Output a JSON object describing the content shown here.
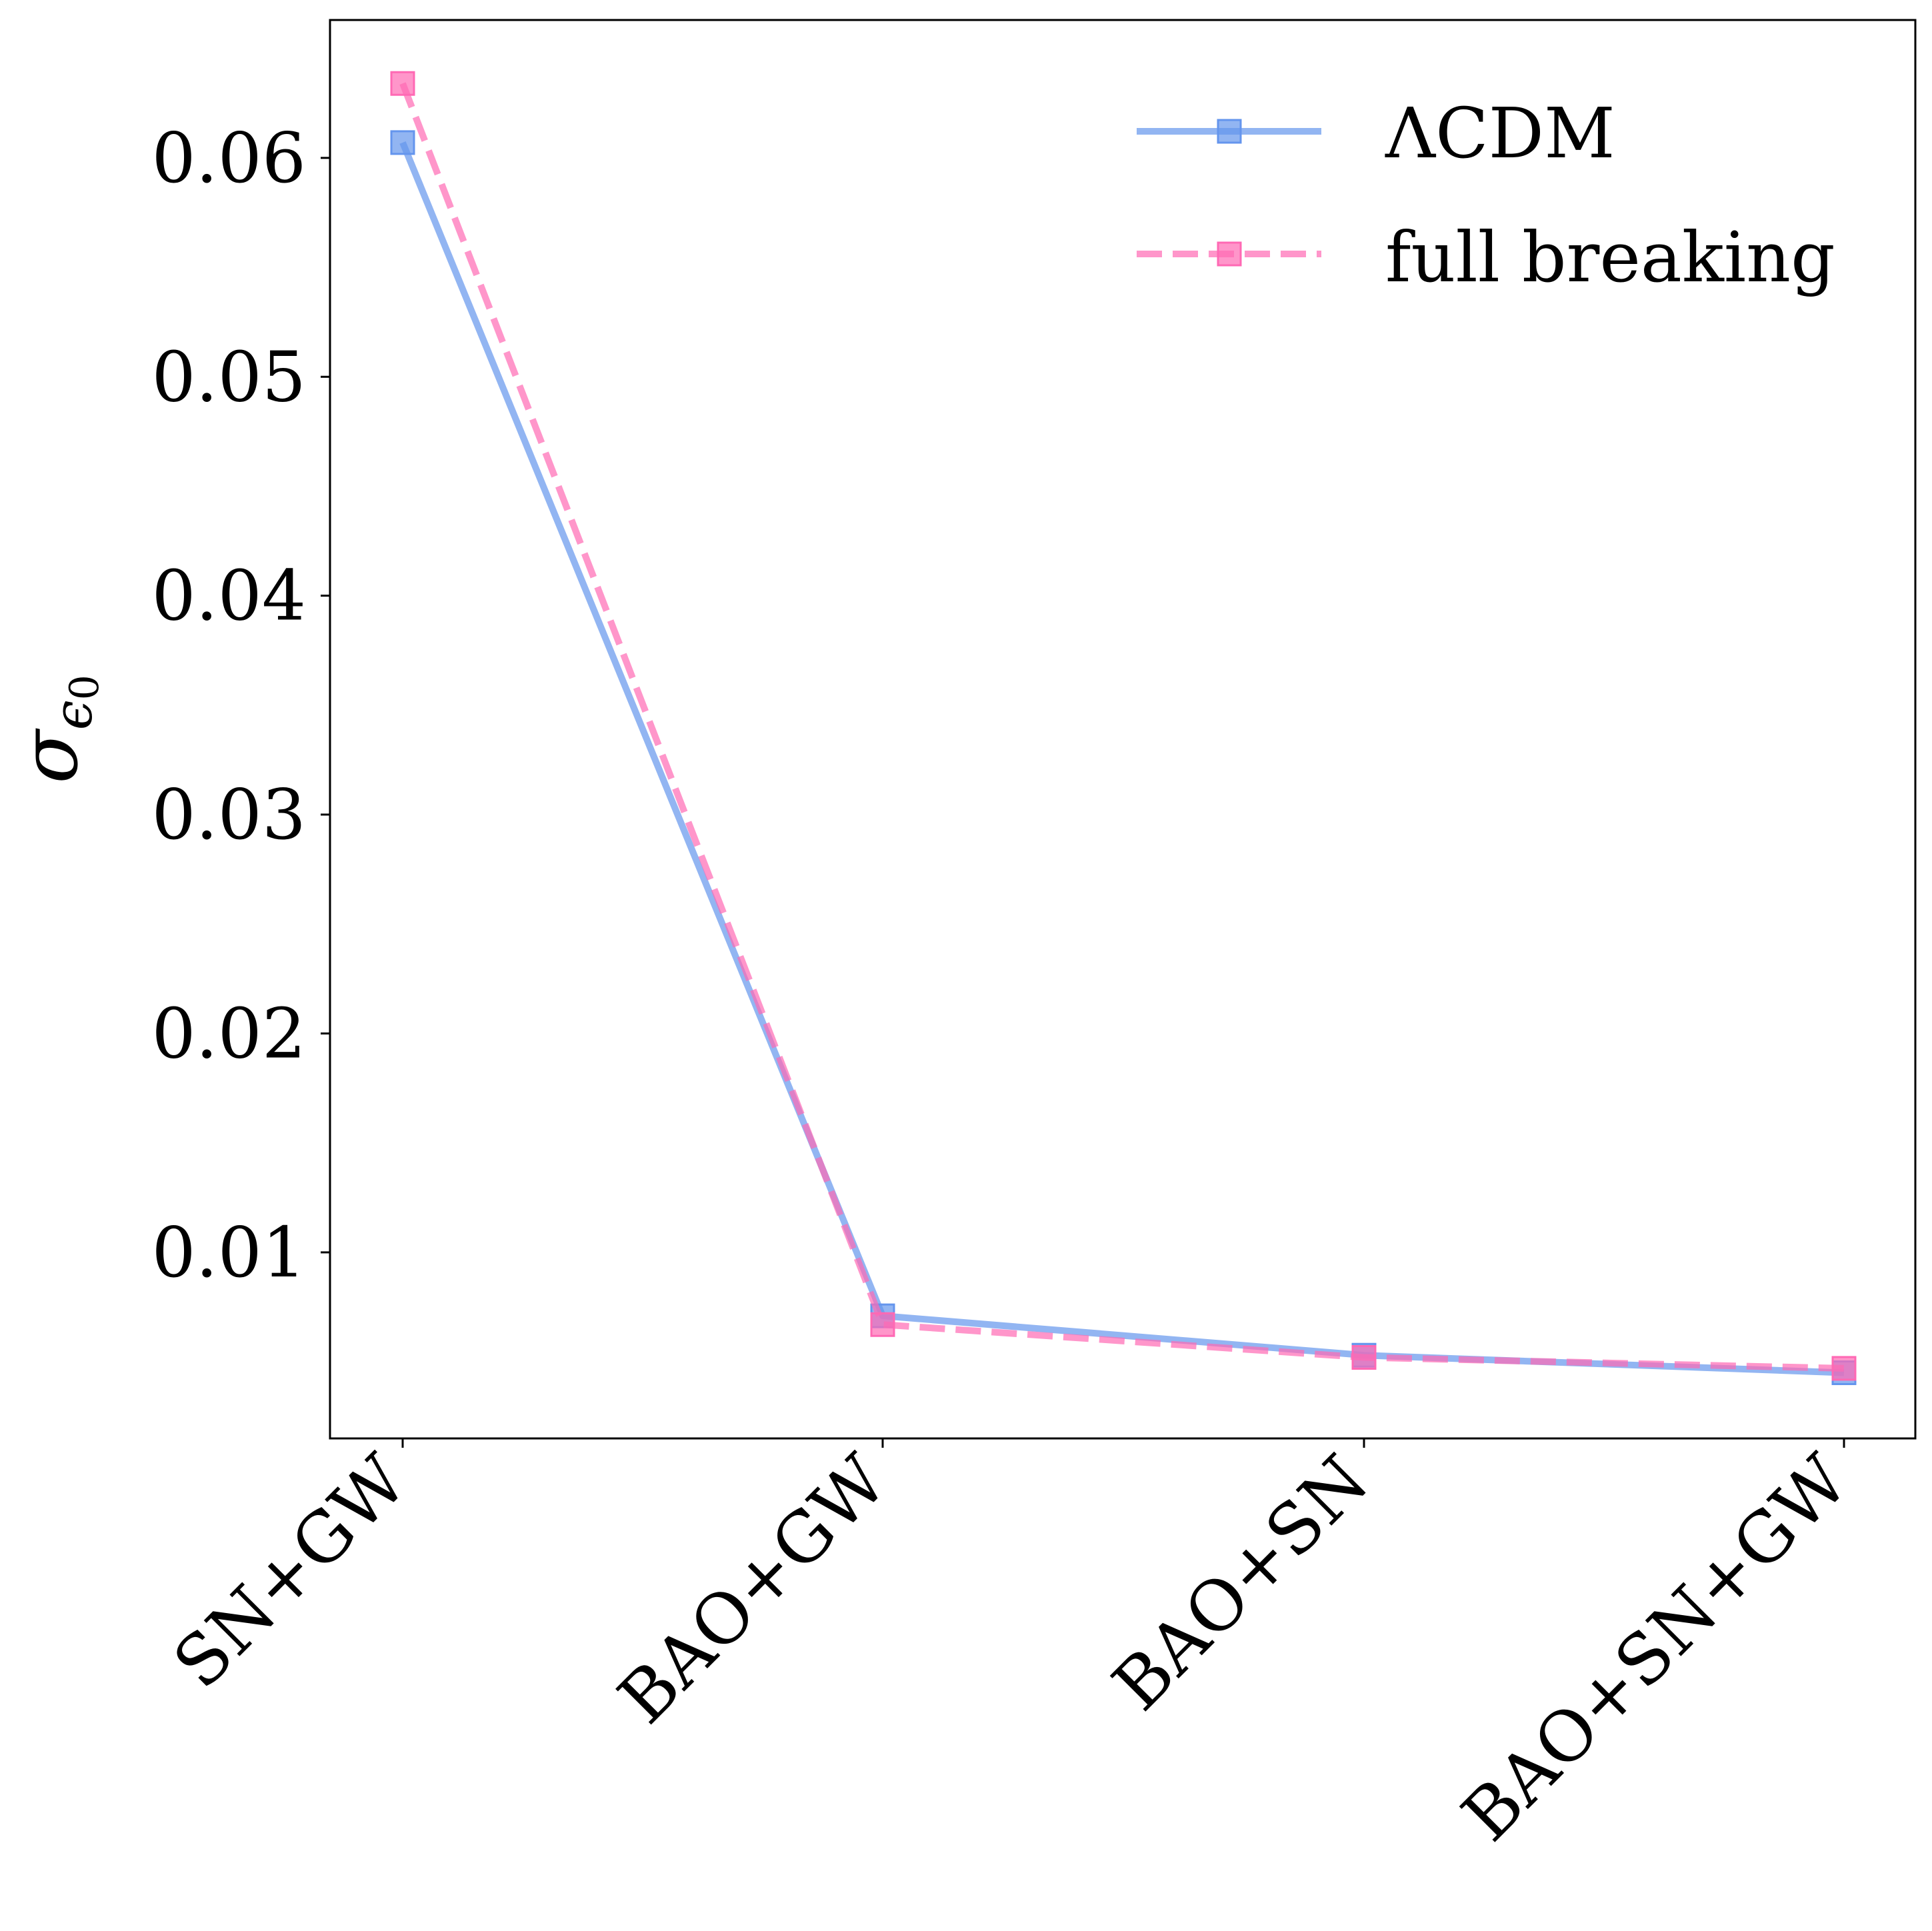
{
  "chart_data": {
    "type": "line",
    "title": "",
    "xlabel": "",
    "ylabel_symbol": "σ",
    "ylabel_subscript_symbol": "ϵ",
    "ylabel_subscript_index": "0",
    "categories": [
      "SN+GW",
      "BAO+GW",
      "BAO+SN",
      "BAO+SN+GW"
    ],
    "ylim": [
      0.0015,
      0.0663
    ],
    "yticks": [
      0.01,
      0.02,
      0.03,
      0.04,
      0.05,
      0.06
    ],
    "ytick_labels": [
      "0.01",
      "0.02",
      "0.03",
      "0.04",
      "0.05",
      "0.06"
    ],
    "grid": false,
    "legend_position": "top-right",
    "series": [
      {
        "name": "ΛCDM",
        "values": [
          0.0607,
          0.0071,
          0.0053,
          0.0045
        ],
        "color": "#6495ED",
        "line_style": "solid",
        "marker": "square"
      },
      {
        "name": "full breaking",
        "values": [
          0.0634,
          0.0067,
          0.0052,
          0.0047
        ],
        "color": "#FF69B4",
        "line_style": "dashed",
        "marker": "square"
      }
    ]
  }
}
